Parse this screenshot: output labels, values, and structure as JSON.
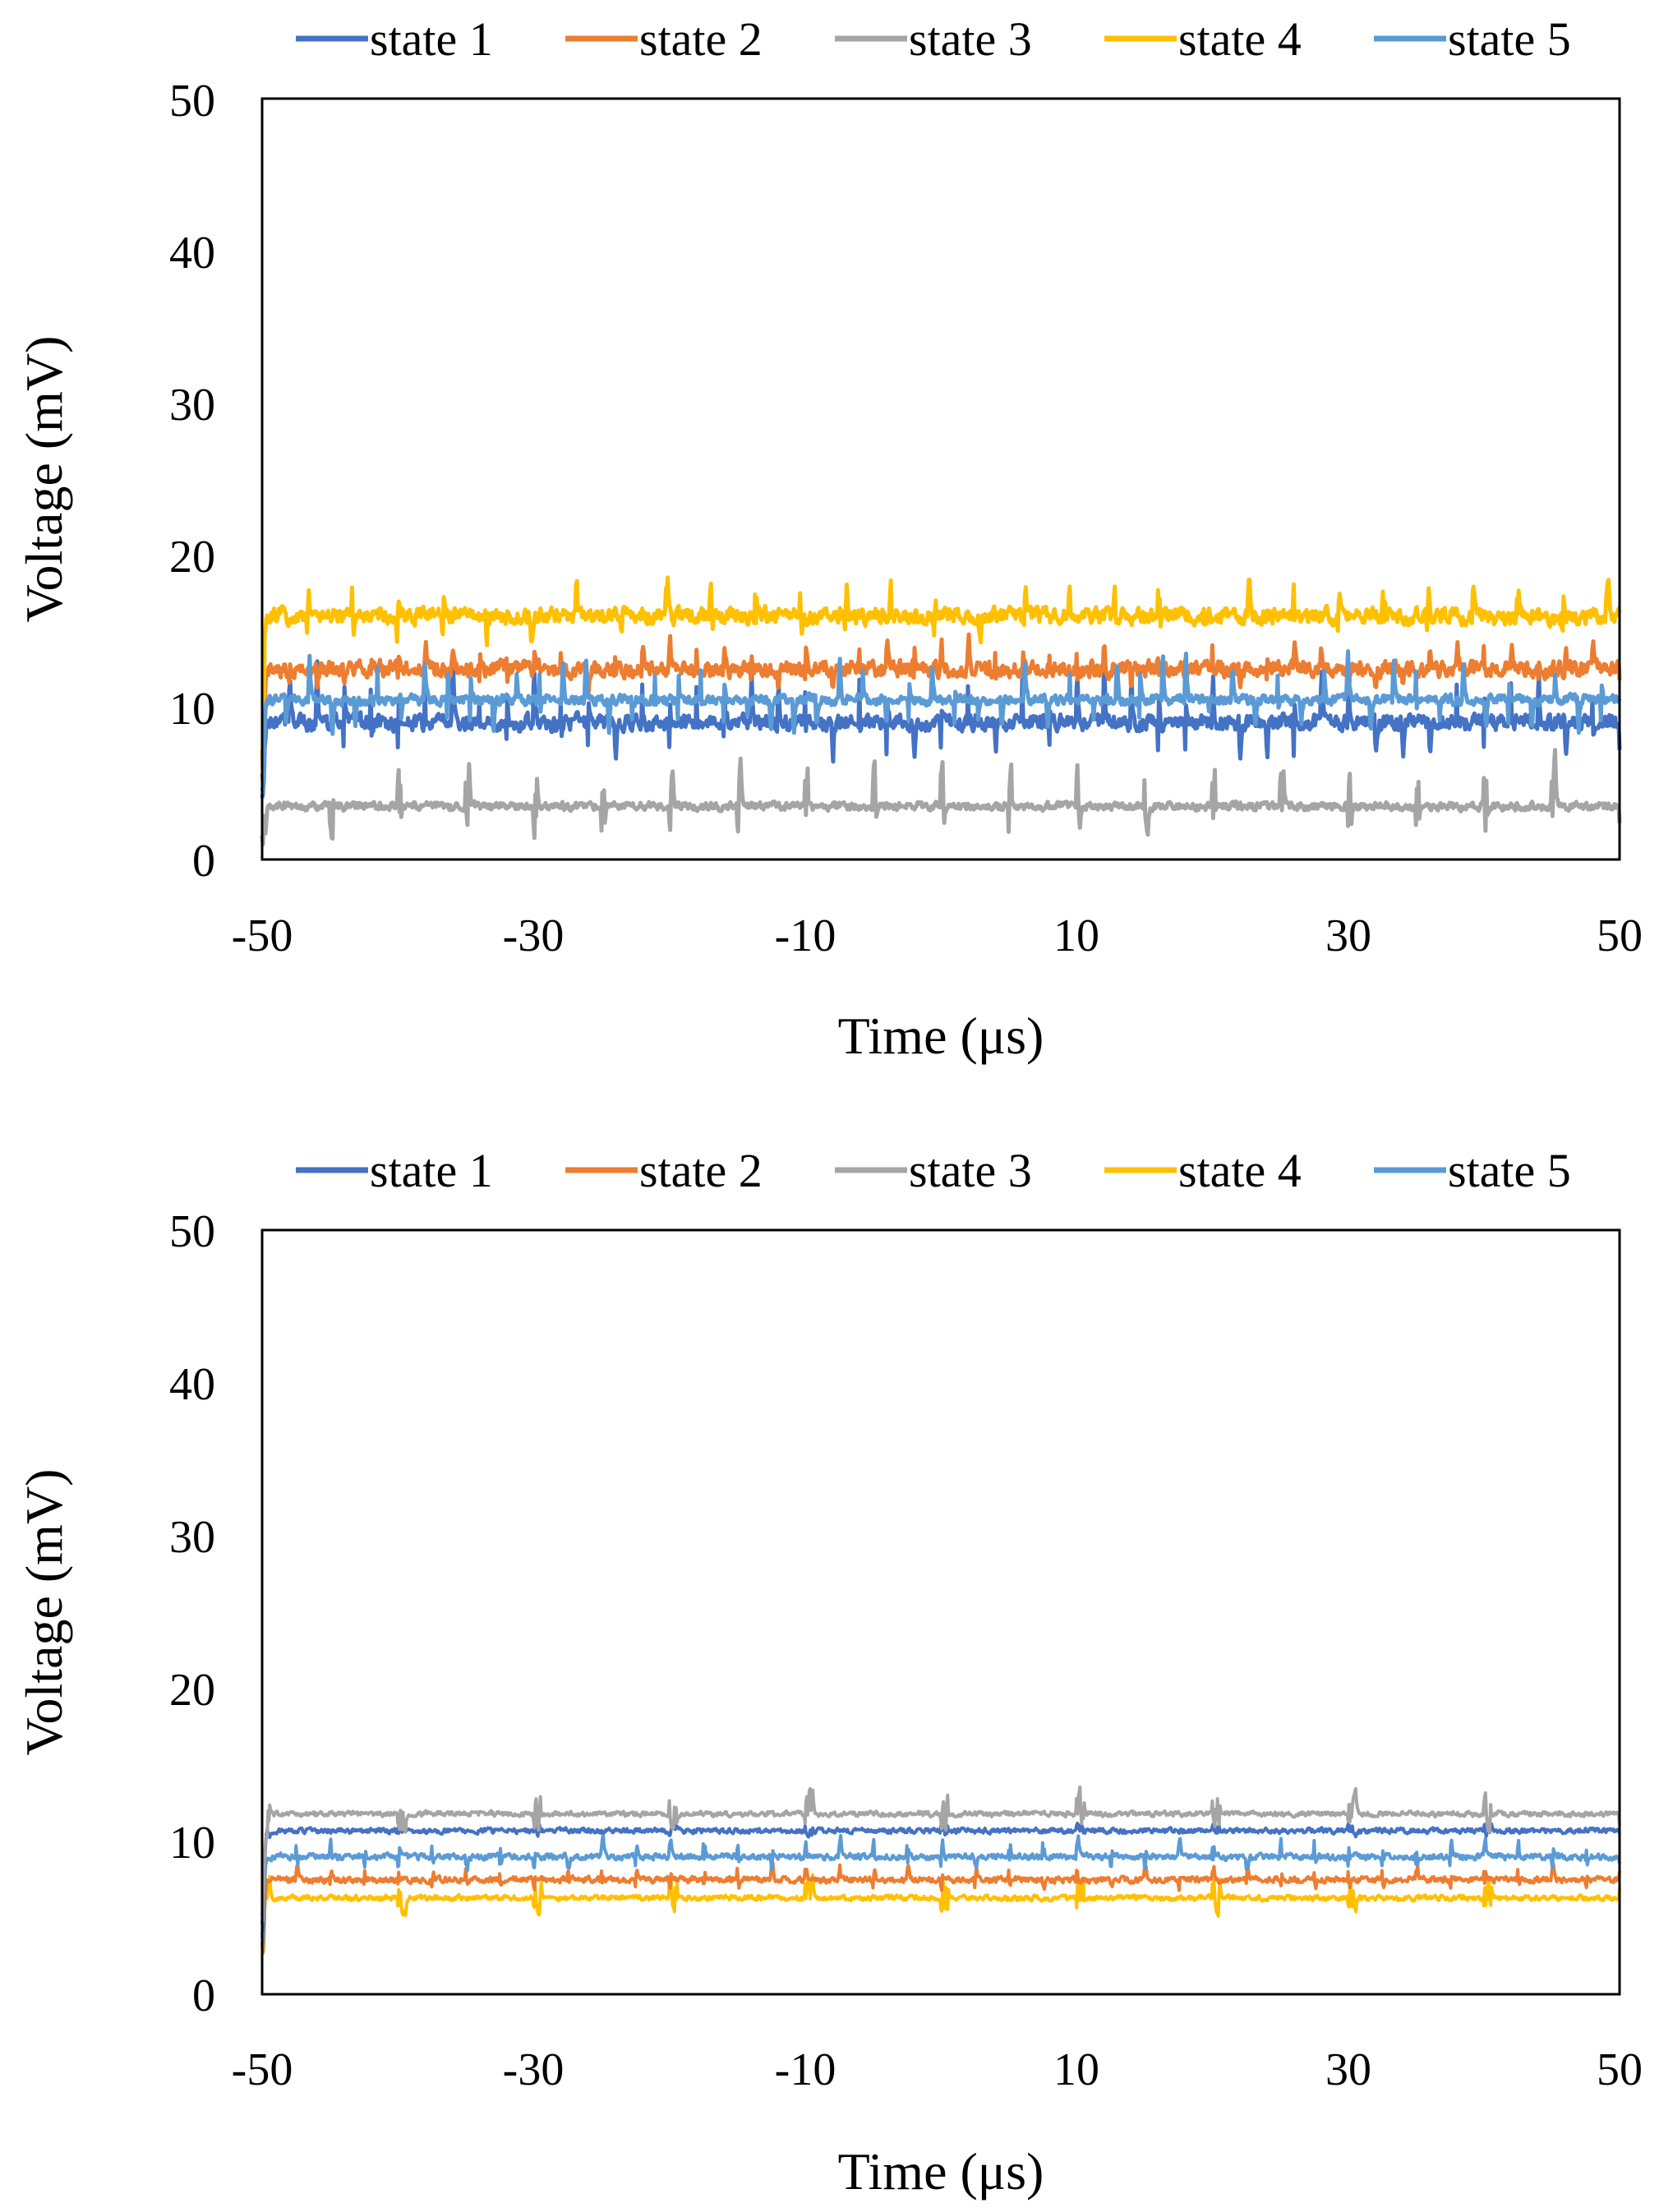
{
  "colors": {
    "state 1": "#4472c4",
    "state 2": "#ed7d31",
    "state 3": "#a5a5a5",
    "state 4": "#ffc000",
    "state 5": "#5b9bd5"
  },
  "chart_data": [
    {
      "type": "line",
      "title": "",
      "xlabel": "Time (μs)",
      "ylabel": "Voltage (mV)",
      "xlim": [
        -50,
        50
      ],
      "ylim": [
        0,
        50
      ],
      "xticks": [
        "-50",
        "-30",
        "-10",
        "10",
        "30",
        "50"
      ],
      "yticks": [
        "0",
        "10",
        "20",
        "30",
        "40",
        "50"
      ],
      "grid": false,
      "legend": "top",
      "series": [
        {
          "name": "state 1",
          "baseline": 9,
          "noise": 0.8,
          "spike_period": 2.0,
          "spike_amp": 5.0
        },
        {
          "name": "state 2",
          "baseline": 12.5,
          "noise": 0.8,
          "spike_period": 2.0,
          "spike_amp": 2.5
        },
        {
          "name": "state 3",
          "baseline": 3.5,
          "noise": 0.4,
          "spike_period": 5.0,
          "spike_amp": 4.0
        },
        {
          "name": "state 4",
          "baseline": 16,
          "noise": 0.8,
          "spike_period": 3.3,
          "spike_amp": 3.0
        },
        {
          "name": "state 5",
          "baseline": 10.5,
          "noise": 0.5,
          "spike_period": 1.7,
          "spike_amp": 4.0
        }
      ]
    },
    {
      "type": "line",
      "title": "",
      "xlabel": "Time (μs)",
      "ylabel": "Voltage (mV)",
      "xlim": [
        -50,
        50
      ],
      "ylim": [
        0,
        50
      ],
      "xticks": [
        "-50",
        "-30",
        "-10",
        "10",
        "30",
        "50"
      ],
      "yticks": [
        "0",
        "10",
        "20",
        "30",
        "40",
        "50"
      ],
      "grid": false,
      "legend": "top",
      "series": [
        {
          "name": "state 1",
          "baseline": 10.7,
          "noise": 0.25,
          "spike_period": 10.0,
          "spike_amp": 0.6
        },
        {
          "name": "state 2",
          "baseline": 7.5,
          "noise": 0.3,
          "spike_period": 2.5,
          "spike_amp": 1.2
        },
        {
          "name": "state 3",
          "baseline": 11.8,
          "noise": 0.25,
          "spike_period": 10.0,
          "spike_amp": 2.0
        },
        {
          "name": "state 4",
          "baseline": 6.3,
          "noise": 0.25,
          "spike_period": 10.0,
          "spike_amp": 1.8
        },
        {
          "name": "state 5",
          "baseline": 9.0,
          "noise": 0.3,
          "spike_period": 2.5,
          "spike_amp": 1.6
        }
      ]
    }
  ]
}
